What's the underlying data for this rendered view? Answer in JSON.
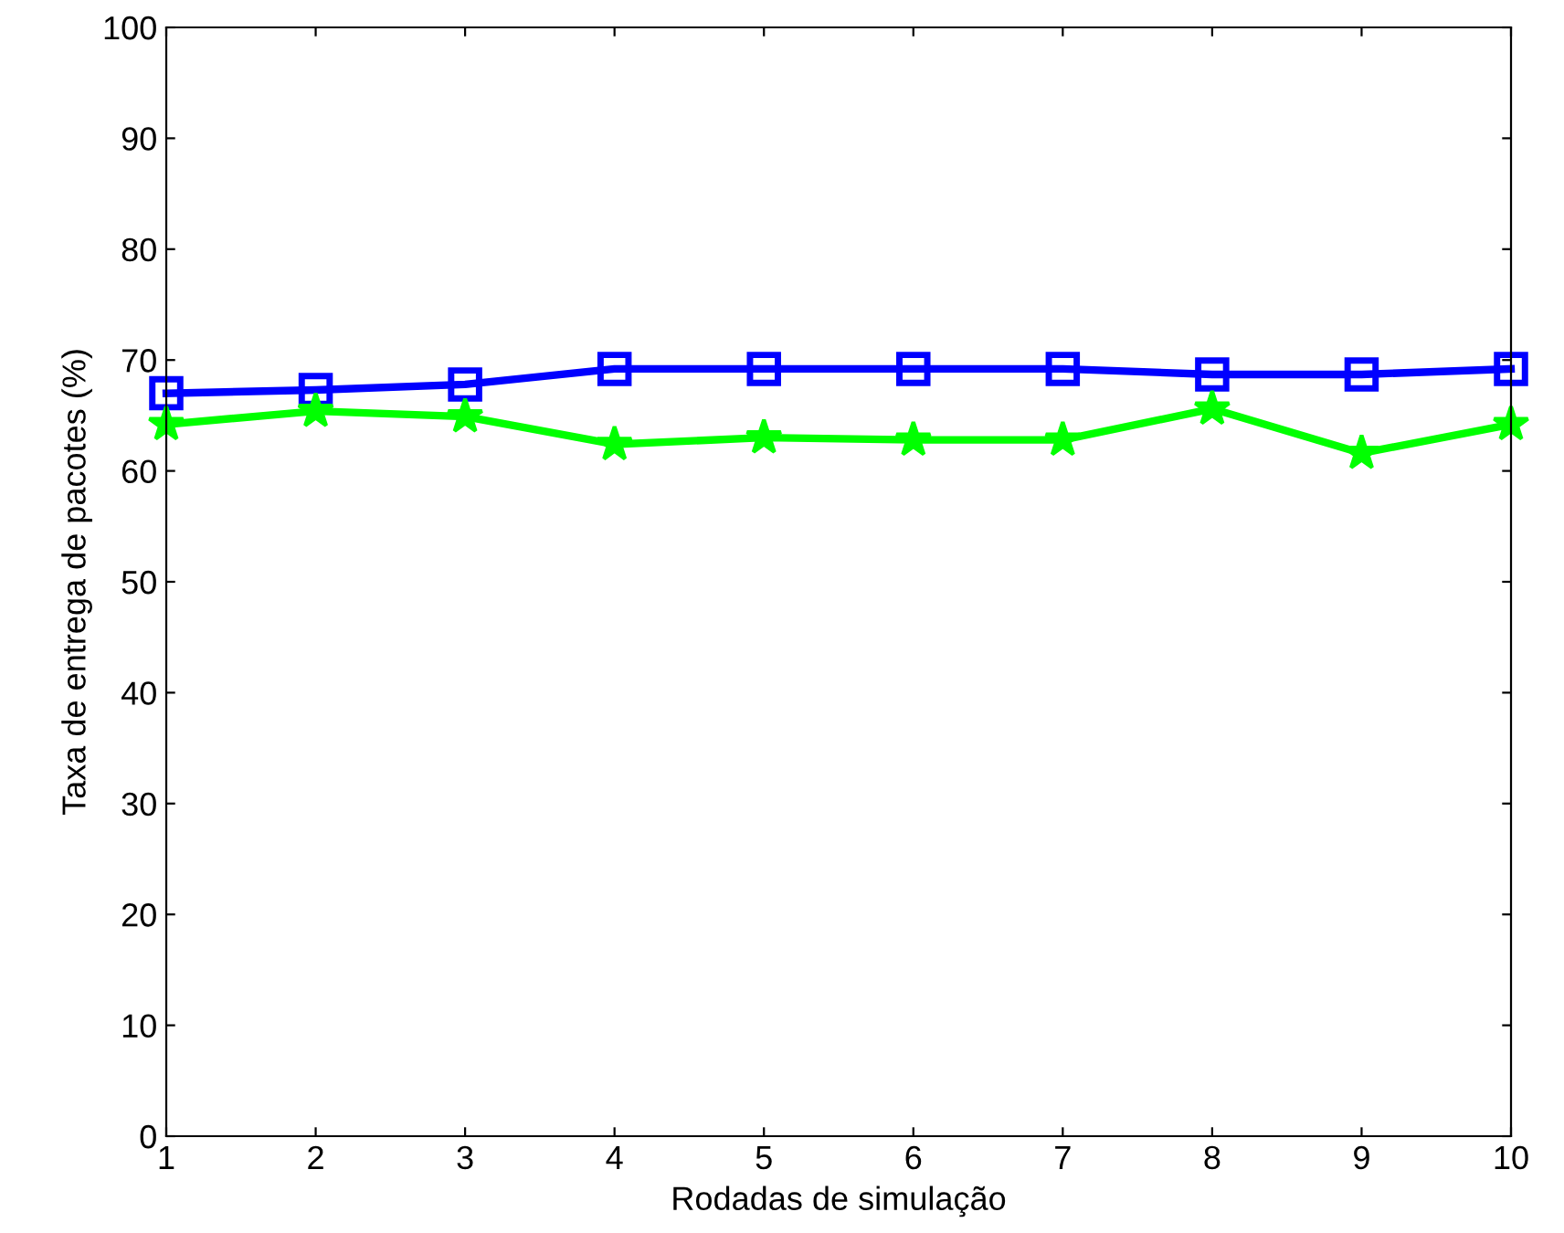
{
  "chart_data": {
    "type": "line",
    "xlabel": "Rodadas de simulação",
    "ylabel": "Taxa de entrega de pacotes (%)",
    "x": [
      1,
      2,
      3,
      4,
      5,
      6,
      7,
      8,
      9,
      10
    ],
    "xlim": [
      1,
      10
    ],
    "xticks": [
      1,
      2,
      3,
      4,
      5,
      6,
      7,
      8,
      9,
      10
    ],
    "ylim": [
      0,
      100
    ],
    "yticks": [
      0,
      10,
      20,
      30,
      40,
      50,
      60,
      70,
      80,
      90,
      100
    ],
    "series": [
      {
        "color": "#0000ff",
        "marker": "square",
        "values": [
          67,
          67.3,
          67.8,
          69.2,
          69.2,
          69.2,
          69.2,
          68.7,
          68.7,
          69.2
        ]
      },
      {
        "color": "#00ff00",
        "marker": "star",
        "values": [
          64.2,
          65.4,
          64.9,
          62.4,
          63,
          62.8,
          62.8,
          65.6,
          61.6,
          64.2
        ]
      }
    ],
    "grid": false,
    "legend": false
  }
}
